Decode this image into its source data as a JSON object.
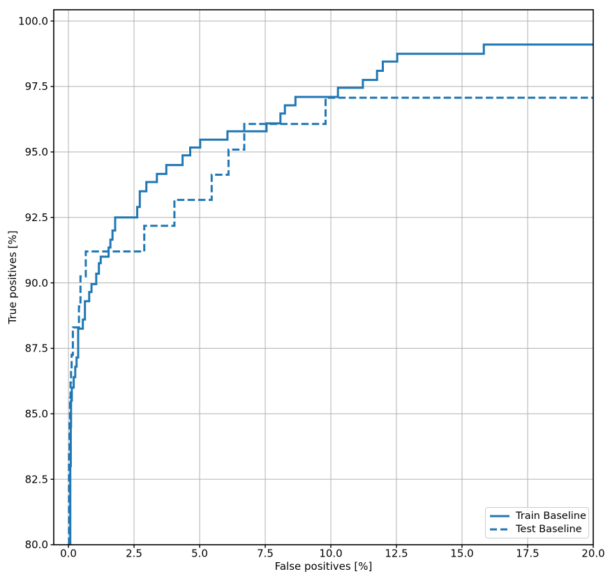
{
  "figure": {
    "background": "#ffffff"
  },
  "colors": {
    "line": "#1f77b4",
    "grid": "#b0b0b0",
    "spine": "#000000",
    "tick_text": "#000000",
    "legend_border": "#cccccc"
  },
  "legend": {
    "position": "lower right",
    "entries": [
      {
        "label": "Train Baseline",
        "style": "solid"
      },
      {
        "label": "Test Baseline",
        "style": "dashed"
      }
    ]
  },
  "chart_data": {
    "type": "line",
    "title": "",
    "xlabel": "False positives [%]",
    "ylabel": "True positives [%]",
    "xlim": [
      -0.56,
      20
    ],
    "ylim": [
      80,
      100.43
    ],
    "grid": true,
    "legend_position": "lower right",
    "step_mode": "run-then-rise",
    "x_ticks": {
      "values": [
        0,
        2.5,
        5,
        7.5,
        10,
        12.5,
        15,
        17.5,
        20
      ],
      "labels": [
        "0.0",
        "2.5",
        "5.0",
        "7.5",
        "10.0",
        "12.5",
        "15.0",
        "17.5",
        "20.0"
      ]
    },
    "y_ticks": {
      "values": [
        80,
        82.5,
        85,
        87.5,
        90,
        92.5,
        95,
        97.5,
        100
      ],
      "labels": [
        "80.0",
        "82.5",
        "85.0",
        "87.5",
        "90.0",
        "92.5",
        "95.0",
        "97.5",
        "100.0"
      ]
    },
    "series": [
      {
        "name": "Train Baseline",
        "color": "#1f77b4",
        "line_style": "solid",
        "line_width": 3,
        "points": [
          [
            0.07,
            80.0
          ],
          [
            0.07,
            83.0
          ],
          [
            0.09,
            84.5
          ],
          [
            0.1,
            85.5
          ],
          [
            0.13,
            86.0
          ],
          [
            0.2,
            86.4
          ],
          [
            0.26,
            86.8
          ],
          [
            0.31,
            87.15
          ],
          [
            0.37,
            88.25
          ],
          [
            0.55,
            88.6
          ],
          [
            0.63,
            89.3
          ],
          [
            0.79,
            89.65
          ],
          [
            0.88,
            89.95
          ],
          [
            1.06,
            90.35
          ],
          [
            1.16,
            90.75
          ],
          [
            1.23,
            91.0
          ],
          [
            1.53,
            91.35
          ],
          [
            1.6,
            91.65
          ],
          [
            1.68,
            92.0
          ],
          [
            1.78,
            92.5
          ],
          [
            2.62,
            92.9
          ],
          [
            2.72,
            93.5
          ],
          [
            2.97,
            93.85
          ],
          [
            3.37,
            94.16
          ],
          [
            3.73,
            94.5
          ],
          [
            4.35,
            94.87
          ],
          [
            4.64,
            95.17
          ],
          [
            5.02,
            95.47
          ],
          [
            6.06,
            95.79
          ],
          [
            7.55,
            96.09
          ],
          [
            8.08,
            96.47
          ],
          [
            8.25,
            96.78
          ],
          [
            8.65,
            97.1
          ],
          [
            10.27,
            97.45
          ],
          [
            11.22,
            97.75
          ],
          [
            11.76,
            98.1
          ],
          [
            11.98,
            98.45
          ],
          [
            12.53,
            98.75
          ],
          [
            15.83,
            99.1
          ],
          [
            20.0,
            99.1
          ]
        ]
      },
      {
        "name": "Test Baseline",
        "color": "#1f77b4",
        "line_style": "dashed",
        "line_width": 3,
        "points": [
          [
            0.02,
            80.0
          ],
          [
            0.02,
            83.5
          ],
          [
            0.04,
            84.8
          ],
          [
            0.06,
            85.6
          ],
          [
            0.08,
            86.2
          ],
          [
            0.1,
            86.7
          ],
          [
            0.12,
            87.25
          ],
          [
            0.17,
            88.3
          ],
          [
            0.4,
            89.1
          ],
          [
            0.46,
            90.25
          ],
          [
            0.66,
            91.2
          ],
          [
            2.89,
            92.18
          ],
          [
            4.04,
            93.17
          ],
          [
            5.46,
            94.13
          ],
          [
            6.1,
            95.09
          ],
          [
            6.7,
            96.07
          ],
          [
            9.8,
            97.07
          ],
          [
            20.0,
            97.07
          ]
        ]
      }
    ]
  }
}
